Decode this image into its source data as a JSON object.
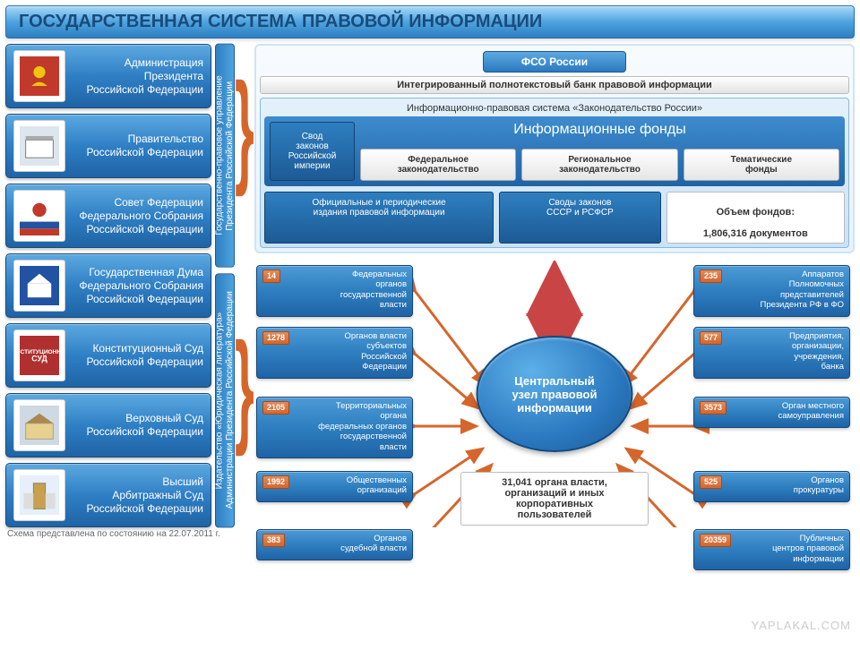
{
  "title": "ГОСУДАРСТВЕННАЯ СИСТЕМА ПРАВОВОЙ ИНФОРМАЦИИ",
  "institutions": [
    "Администрация\nПрезидента\nРоссийской Федерации",
    "Правительство\nРоссийской Федерации",
    "Совет Федерации\nФедерального Собрания\nРоссийской Федерации",
    "Государственная Дума\nФедерального Собрания\nРоссийской Федерации",
    "Конституционный Суд\nРоссийской Федерации",
    "Верховный Суд\nРоссийской Федерации",
    "Высший\nАрбитражный Суд\nРоссийской Федерации"
  ],
  "vert1": "Государственно-правовое управление\nПрезидента Российской Федерации",
  "vert2": "Издательство «Юридическая литература»\nАдминистрации Президента Российской Федерации",
  "fso": "ФСО России",
  "bankline": "Интегрированный полнотекстовый банк правовой информации",
  "ipsys_title": "Информационно-правовая система «Законодательство России»",
  "funds_title": "Информационные фонды",
  "svod": "Свод\nзаконов\nРоссийской\nимперии",
  "fund1": "Федеральное\nзаконодательство",
  "fund2": "Региональное\nзаконодательство",
  "fund3": "Тематические\nфонды",
  "under1": "Официальные и периодические\nиздания правовой информации",
  "under2": "Своды законов\nСССР и РСФСР",
  "volume_label": "Объем фондов:",
  "volume_value": "1,806,316 документов",
  "hub": "Центральный\nузел правовой\nинформации",
  "left_stats": [
    {
      "n": "14",
      "t": "Федеральных\nорганов\nгосударственной\nвласти"
    },
    {
      "n": "1278",
      "t": "Органов власти\nсубъектов\nРоссийской\nФедерации"
    },
    {
      "n": "2105",
      "t": "Территориальных\nоргана\nфедеральных органов\nгосударственной\nвласти"
    },
    {
      "n": "1992",
      "t": "Общественных\nорганизаций"
    },
    {
      "n": "383",
      "t": "Органов\nсудебной власти"
    }
  ],
  "right_stats": [
    {
      "n": "235",
      "t": "Аппаратов\nПолномочных\nпредставителей\nПрезидента РФ в ФО"
    },
    {
      "n": "577",
      "t": "Предприятия,\nорганизации,\nучреждения,\nбанка"
    },
    {
      "n": "3573",
      "t": "Орган местного\nсамоуправления"
    },
    {
      "n": "525",
      "t": "Органов\nпрокуратуры"
    },
    {
      "n": "20359",
      "t": "Публичных\nцентров правовой\nинформации"
    }
  ],
  "summary": "31,041 органа власти,\nорганизаций и иных\nкорпоративных\nпользователей",
  "footer": "Схема представлена по состоянию на 22.07.2011 г.",
  "watermark": "YAPLAKAL.COM",
  "colors": {
    "orange": "#d5662b",
    "blue_dark": "#1f63a5",
    "blue_mid": "#2e7fc0"
  }
}
